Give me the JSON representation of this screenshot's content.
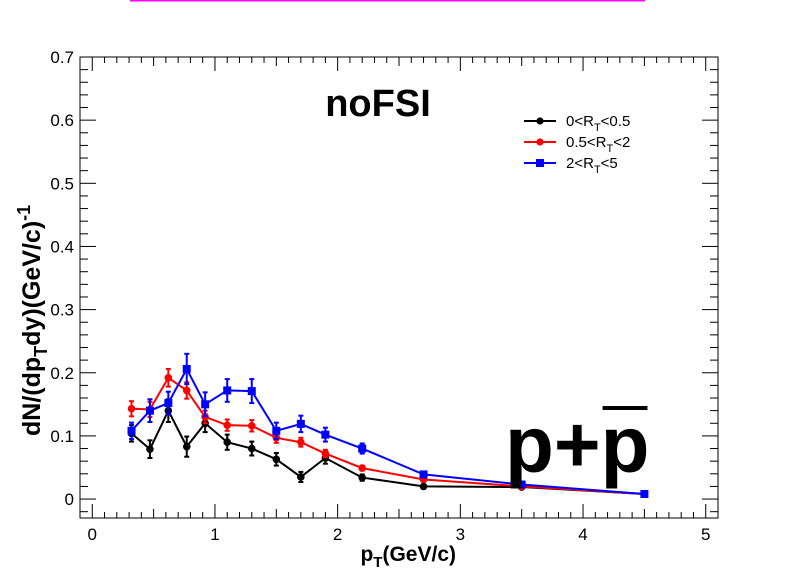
{
  "chart_data": {
    "type": "line",
    "title": "noFSI",
    "annotation": "p+p̅",
    "annotation_base": "p+",
    "annotation_overlined": "p",
    "xlabel": "p_T(GeV/c)",
    "xlabel_main": "p",
    "xlabel_sub": "T",
    "xlabel_rest": "(GeV/c)",
    "ylabel": "dN/(dp_T dy)(GeV/c)^-1",
    "ylabel_parts": {
      "a": "dN/(dp",
      "sub": "T",
      "b": "dy)(GeV/c)",
      "sup": "-1"
    },
    "xlim": [
      -0.1,
      5.1
    ],
    "ylim": [
      -0.03,
      0.7
    ],
    "xticks": [
      0,
      1,
      2,
      3,
      4,
      5
    ],
    "yticks": [
      0,
      0.1,
      0.2,
      0.3,
      0.4,
      0.5,
      0.6,
      0.7
    ],
    "ytick_labels": [
      "0",
      "0.1",
      "0.2",
      "0.3",
      "0.4",
      "0.5",
      "0.6",
      "0.7"
    ],
    "grid": false,
    "legend_position": "top-right",
    "series": [
      {
        "name": "0<R_T<0.5",
        "legend": {
          "a": "0<R",
          "sub": "T",
          "b": "<0.5"
        },
        "color": "#000000",
        "marker": "circle",
        "x": [
          0.32,
          0.47,
          0.62,
          0.77,
          0.92,
          1.1,
          1.3,
          1.5,
          1.7,
          1.9,
          2.2,
          2.7,
          3.5,
          4.5
        ],
        "y": [
          0.104,
          0.079,
          0.14,
          0.083,
          0.12,
          0.09,
          0.08,
          0.063,
          0.035,
          0.065,
          0.034,
          0.02,
          0.019,
          0.008
        ],
        "err": [
          0.013,
          0.014,
          0.018,
          0.016,
          0.014,
          0.012,
          0.011,
          0.01,
          0.008,
          0.009,
          0.005,
          0.003,
          0.002,
          0.002
        ]
      },
      {
        "name": "0.5<R_T<2",
        "legend": {
          "a": "0.5<R",
          "sub": "T",
          "b": "<2"
        },
        "color": "#ff0000",
        "marker": "circle",
        "x": [
          0.32,
          0.47,
          0.62,
          0.77,
          0.92,
          1.1,
          1.3,
          1.5,
          1.7,
          1.9,
          2.2,
          2.7,
          3.5,
          4.5
        ],
        "y": [
          0.143,
          0.142,
          0.192,
          0.172,
          0.13,
          0.117,
          0.116,
          0.097,
          0.09,
          0.072,
          0.049,
          0.031,
          0.02,
          0.008
        ],
        "err": [
          0.012,
          0.012,
          0.014,
          0.013,
          0.01,
          0.009,
          0.009,
          0.008,
          0.007,
          0.006,
          0.004,
          0.003,
          0.002,
          0.002
        ]
      },
      {
        "name": "2<R_T<5",
        "legend": {
          "a": "2<R",
          "sub": "T",
          "b": "<5"
        },
        "color": "#0000ff",
        "marker": "square",
        "x": [
          0.32,
          0.47,
          0.62,
          0.77,
          0.92,
          1.1,
          1.3,
          1.5,
          1.7,
          1.9,
          2.2,
          2.7,
          3.5,
          4.5
        ],
        "y": [
          0.108,
          0.14,
          0.152,
          0.206,
          0.15,
          0.172,
          0.171,
          0.108,
          0.119,
          0.102,
          0.08,
          0.039,
          0.023,
          0.008
        ],
        "err": [
          0.013,
          0.018,
          0.018,
          0.024,
          0.019,
          0.018,
          0.019,
          0.013,
          0.013,
          0.011,
          0.008,
          0.004,
          0.003,
          0.002
        ]
      }
    ]
  }
}
